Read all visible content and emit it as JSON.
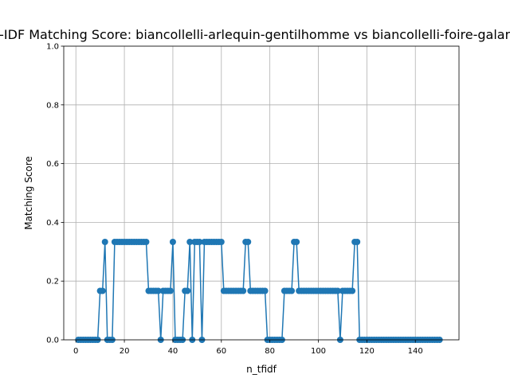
{
  "chart_data": {
    "type": "line",
    "title": "TF-IDF Matching Score: biancollelli-arlequin-gentilhomme vs biancollelli-foire-galante",
    "xlabel": "n_tfidf",
    "ylabel": "Matching Score",
    "xlim": [
      -5,
      158
    ],
    "ylim": [
      0,
      1.0
    ],
    "xticks": [
      0,
      20,
      40,
      60,
      80,
      100,
      120,
      140
    ],
    "yticks": [
      0.0,
      0.2,
      0.4,
      0.6,
      0.8,
      1.0
    ],
    "xtick_labels": [
      "0",
      "20",
      "40",
      "60",
      "80",
      "100",
      "120",
      "140"
    ],
    "ytick_labels": [
      "0.0",
      "0.2",
      "0.4",
      "0.6",
      "0.8",
      "1.0"
    ],
    "grid": true,
    "line_color": "#1f77b4",
    "marker": "circle",
    "series": [
      {
        "x": [
          1,
          2,
          3,
          4,
          5,
          6,
          7,
          8,
          9,
          10,
          11,
          12,
          13,
          14,
          15,
          16,
          17,
          18,
          19,
          20,
          21,
          22,
          23,
          24,
          25,
          26,
          27,
          28,
          29,
          30,
          31,
          32,
          33,
          34,
          35,
          36,
          37,
          38,
          39,
          40,
          41,
          42,
          43,
          44,
          45,
          46,
          47,
          48,
          49,
          50,
          51,
          52,
          53,
          54,
          55,
          56,
          57,
          58,
          59,
          60,
          61,
          62,
          63,
          64,
          65,
          66,
          67,
          68,
          69,
          70,
          71,
          72,
          73,
          74,
          75,
          76,
          77,
          78,
          79,
          80,
          81,
          82,
          83,
          84,
          85,
          86,
          87,
          88,
          89,
          90,
          91,
          92,
          93,
          94,
          95,
          96,
          97,
          98,
          99,
          100,
          101,
          102,
          103,
          104,
          105,
          106,
          107,
          108,
          109,
          110,
          111,
          112,
          113,
          114,
          115,
          116,
          117,
          118,
          119,
          120,
          121,
          122,
          123,
          124,
          125,
          126,
          127,
          128,
          129,
          130,
          131,
          132,
          133,
          134,
          135,
          136,
          137,
          138,
          139,
          140,
          141,
          142,
          143,
          144,
          145,
          146,
          147,
          148,
          149,
          150
        ],
        "values": [
          0,
          0,
          0,
          0,
          0,
          0,
          0,
          0,
          0,
          0.1667,
          0.1667,
          0.3333,
          0,
          0,
          0,
          0.3333,
          0.3333,
          0.3333,
          0.3333,
          0.3333,
          0.3333,
          0.3333,
          0.3333,
          0.3333,
          0.3333,
          0.3333,
          0.3333,
          0.3333,
          0.3333,
          0.1667,
          0.1667,
          0.1667,
          0.1667,
          0.1667,
          0,
          0.1667,
          0.1667,
          0.1667,
          0.1667,
          0.3333,
          0,
          0,
          0,
          0,
          0.1667,
          0.1667,
          0.3333,
          0,
          0.3333,
          0.3333,
          0.3333,
          0,
          0.3333,
          0.3333,
          0.3333,
          0.3333,
          0.3333,
          0.3333,
          0.3333,
          0.3333,
          0.1667,
          0.1667,
          0.1667,
          0.1667,
          0.1667,
          0.1667,
          0.1667,
          0.1667,
          0.1667,
          0.3333,
          0.3333,
          0.1667,
          0.1667,
          0.1667,
          0.1667,
          0.1667,
          0.1667,
          0.1667,
          0,
          0,
          0,
          0,
          0,
          0,
          0,
          0.1667,
          0.1667,
          0.1667,
          0.1667,
          0.3333,
          0.3333,
          0.1667,
          0.1667,
          0.1667,
          0.1667,
          0.1667,
          0.1667,
          0.1667,
          0.1667,
          0.1667,
          0.1667,
          0.1667,
          0.1667,
          0.1667,
          0.1667,
          0.1667,
          0.1667,
          0.1667,
          0,
          0.1667,
          0.1667,
          0.1667,
          0.1667,
          0.1667,
          0.3333,
          0.3333,
          0,
          0,
          0,
          0,
          0,
          0,
          0,
          0,
          0,
          0,
          0,
          0,
          0,
          0,
          0,
          0,
          0,
          0,
          0,
          0,
          0,
          0,
          0,
          0,
          0,
          0,
          0,
          0,
          0,
          0,
          0,
          0,
          0,
          0
        ]
      }
    ]
  }
}
